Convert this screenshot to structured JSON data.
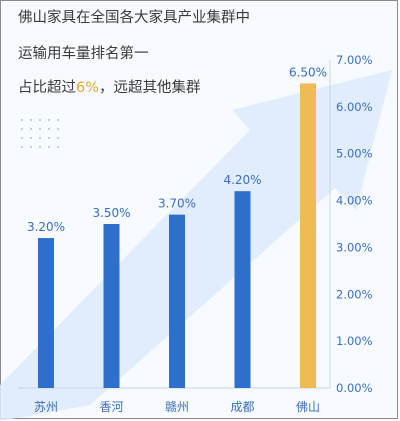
{
  "headline": {
    "line1": "佛山家具在全国各大家具产业集群中",
    "line2": "运输用车量排名第一",
    "line3_pre": "占比超过",
    "line3_highlight": "6%",
    "line3_post": "，远超其他集群"
  },
  "colors": {
    "bar": "#2e6fcb",
    "highlight_bar": "#efbb55",
    "highlight_text": "#e8a93a",
    "label": "#3a6fbf",
    "arrow": "#dde9fb"
  },
  "chart_data": {
    "type": "bar",
    "categories": [
      "苏州",
      "香河",
      "赣州",
      "成都",
      "佛山"
    ],
    "values": [
      3.2,
      3.5,
      3.7,
      4.2,
      6.5
    ],
    "data_labels": [
      "3.20%",
      "3.50%",
      "3.70%",
      "4.20%",
      "6.50%"
    ],
    "ylim": [
      0,
      7
    ],
    "yticks": [
      "0.00%",
      "1.00%",
      "2.00%",
      "3.00%",
      "4.00%",
      "5.00%",
      "6.00%",
      "7.00%"
    ],
    "highlight_category": "佛山",
    "y_axis_position": "right",
    "grid": false
  }
}
